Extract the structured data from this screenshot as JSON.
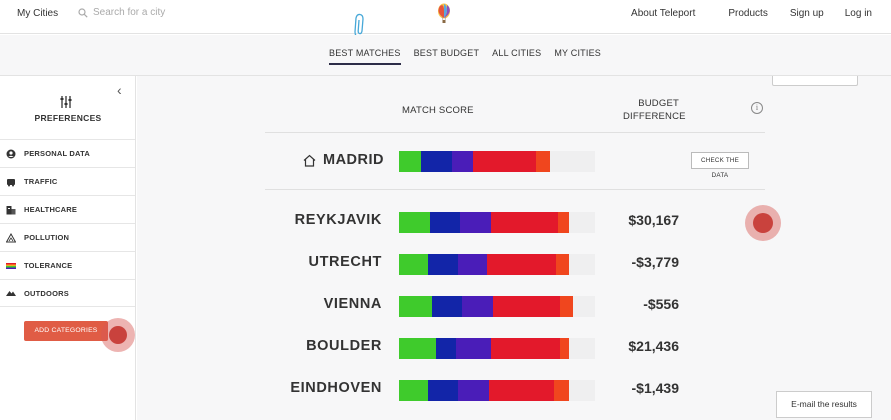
{
  "topbar": {
    "my_cities": "My Cities",
    "search_placeholder": "Search for a city",
    "nav": [
      "About Teleport",
      "Products",
      "Sign up",
      "Log in"
    ]
  },
  "tabs": [
    {
      "label": "BEST MATCHES",
      "active": true
    },
    {
      "label": "BEST BUDGET",
      "active": false
    },
    {
      "label": "ALL CITIES",
      "active": false
    },
    {
      "label": "MY CITIES",
      "active": false
    }
  ],
  "sidebar": {
    "collapse_icon": "chevron-left-icon",
    "title": "PREFERENCES",
    "categories": [
      {
        "label": "PERSONAL DATA",
        "icon": "person-icon"
      },
      {
        "label": "TRAFFIC",
        "icon": "traffic-icon"
      },
      {
        "label": "HEALTHCARE",
        "icon": "healthcare-icon"
      },
      {
        "label": "POLLUTION",
        "icon": "pollution-icon"
      },
      {
        "label": "TOLERANCE",
        "icon": "tolerance-icon"
      },
      {
        "label": "OUTDOORS",
        "icon": "outdoors-icon"
      }
    ],
    "add_button": "ADD CATEGORIES"
  },
  "table": {
    "match_header": "MATCH SCORE",
    "budget_header": "BUDGET DIFFERENCE",
    "check_button": "CHECK THE DATA",
    "home_city": {
      "name": "MADRID",
      "segments": [
        {
          "color": "#3fcb2c",
          "share": 0.11
        },
        {
          "color": "#1225a8",
          "share": 0.16
        },
        {
          "color": "#4a1db8",
          "share": 0.11
        },
        {
          "color": "#e3192b",
          "share": 0.32
        },
        {
          "color": "#f0461e",
          "share": 0.07
        }
      ]
    },
    "cities": [
      {
        "name": "REYKJAVIK",
        "budget": "$30,167",
        "segments": [
          {
            "color": "#3fcb2c",
            "share": 0.16
          },
          {
            "color": "#1225a8",
            "share": 0.15
          },
          {
            "color": "#4a1db8",
            "share": 0.16
          },
          {
            "color": "#e3192b",
            "share": 0.34
          },
          {
            "color": "#f0461e",
            "share": 0.06
          }
        ]
      },
      {
        "name": "UTRECHT",
        "budget": "-$3,779",
        "segments": [
          {
            "color": "#3fcb2c",
            "share": 0.15
          },
          {
            "color": "#1225a8",
            "share": 0.15
          },
          {
            "color": "#4a1db8",
            "share": 0.15
          },
          {
            "color": "#e3192b",
            "share": 0.35
          },
          {
            "color": "#f0461e",
            "share": 0.07
          }
        ]
      },
      {
        "name": "VIENNA",
        "budget": "-$556",
        "segments": [
          {
            "color": "#3fcb2c",
            "share": 0.17
          },
          {
            "color": "#1225a8",
            "share": 0.15
          },
          {
            "color": "#4a1db8",
            "share": 0.16
          },
          {
            "color": "#e3192b",
            "share": 0.34
          },
          {
            "color": "#f0461e",
            "share": 0.07
          }
        ]
      },
      {
        "name": "BOULDER",
        "budget": "$21,436",
        "segments": [
          {
            "color": "#3fcb2c",
            "share": 0.19
          },
          {
            "color": "#1225a8",
            "share": 0.1
          },
          {
            "color": "#4a1db8",
            "share": 0.18
          },
          {
            "color": "#e3192b",
            "share": 0.35
          },
          {
            "color": "#f0461e",
            "share": 0.05
          }
        ]
      },
      {
        "name": "EINDHOVEN",
        "budget": "-$1,439",
        "segments": [
          {
            "color": "#3fcb2c",
            "share": 0.15
          },
          {
            "color": "#1225a8",
            "share": 0.15
          },
          {
            "color": "#4a1db8",
            "share": 0.16
          },
          {
            "color": "#e3192b",
            "share": 0.33
          },
          {
            "color": "#f0461e",
            "share": 0.08
          }
        ]
      }
    ]
  },
  "email_button": "E-mail the results",
  "colors": {
    "accent": "#e05c45",
    "tab_underline": "#2d2d48"
  }
}
